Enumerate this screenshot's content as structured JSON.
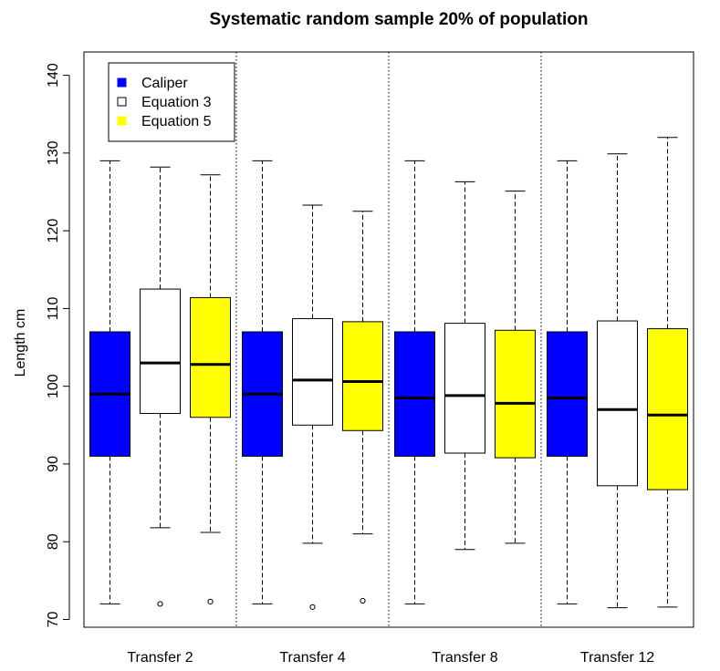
{
  "chart_data": {
    "type": "boxplot",
    "title": "Systematic random sample 20% of population",
    "ylabel": "Length cm",
    "xlabel": "",
    "ylim": [
      69,
      143
    ],
    "yticks": [
      70,
      80,
      90,
      100,
      110,
      120,
      130,
      140
    ],
    "groups": [
      "Transfer 2",
      "Transfer 4",
      "Transfer 8",
      "Transfer 12"
    ],
    "legend": {
      "position": "top-left",
      "entries": [
        {
          "name": "Caliper",
          "color": "#0000ff"
        },
        {
          "name": "Equation 3",
          "color": "#ffffff"
        },
        {
          "name": "Equation 5",
          "color": "#ffff00"
        }
      ]
    },
    "series": [
      {
        "name": "Caliper",
        "color": "#0000ff",
        "boxes": [
          {
            "group": "Transfer 2",
            "min": 72,
            "q1": 91,
            "median": 99,
            "q3": 107,
            "max": 129,
            "outliers": []
          },
          {
            "group": "Transfer 4",
            "min": 72,
            "q1": 91,
            "median": 99,
            "q3": 107,
            "max": 129,
            "outliers": []
          },
          {
            "group": "Transfer 8",
            "min": 72,
            "q1": 91,
            "median": 98.5,
            "q3": 107,
            "max": 129,
            "outliers": []
          },
          {
            "group": "Transfer 12",
            "min": 72,
            "q1": 91,
            "median": 98.5,
            "q3": 107,
            "max": 129,
            "outliers": []
          }
        ]
      },
      {
        "name": "Equation 3",
        "color": "#ffffff",
        "boxes": [
          {
            "group": "Transfer 2",
            "min": 81.8,
            "q1": 96.5,
            "median": 103,
            "q3": 112.5,
            "max": 128.2,
            "outliers": [
              72
            ]
          },
          {
            "group": "Transfer 4",
            "min": 79.8,
            "q1": 95,
            "median": 100.8,
            "q3": 108.7,
            "max": 123.3,
            "outliers": [
              71.6
            ]
          },
          {
            "group": "Transfer 8",
            "min": 79,
            "q1": 91.4,
            "median": 98.8,
            "q3": 108.1,
            "max": 126.3,
            "outliers": []
          },
          {
            "group": "Transfer 12",
            "min": 71.5,
            "q1": 87.2,
            "median": 97,
            "q3": 108.4,
            "max": 129.9,
            "outliers": []
          }
        ]
      },
      {
        "name": "Equation 5",
        "color": "#ffff00",
        "boxes": [
          {
            "group": "Transfer 2",
            "min": 81.2,
            "q1": 96,
            "median": 102.8,
            "q3": 111.4,
            "max": 127.2,
            "outliers": [
              72.3
            ]
          },
          {
            "group": "Transfer 4",
            "min": 81,
            "q1": 94.3,
            "median": 100.6,
            "q3": 108.3,
            "max": 122.5,
            "outliers": [
              72.4
            ]
          },
          {
            "group": "Transfer 8",
            "min": 79.8,
            "q1": 90.8,
            "median": 97.8,
            "q3": 107.2,
            "max": 125.1,
            "outliers": []
          },
          {
            "group": "Transfer 12",
            "min": 71.6,
            "q1": 86.7,
            "median": 96.3,
            "q3": 107.4,
            "max": 132,
            "outliers": []
          }
        ]
      }
    ]
  }
}
